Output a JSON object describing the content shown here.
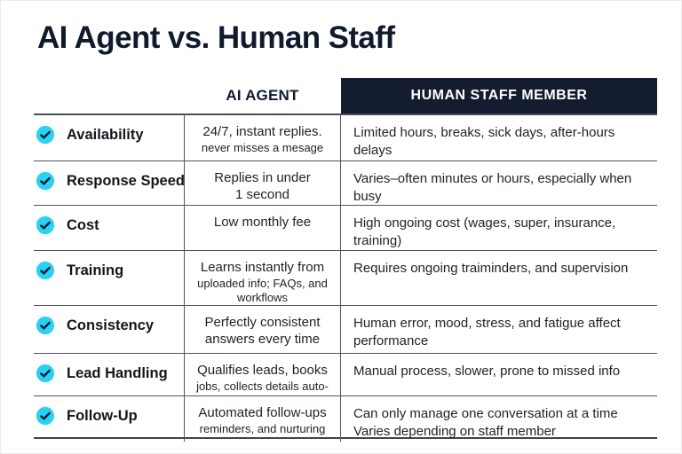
{
  "title": "AI Agent vs. Human Staff",
  "colors": {
    "navy": "#141c30",
    "cyan": "#29d2f2",
    "grid_line": "#4e555e",
    "text": "#1d2126"
  },
  "icons": {
    "check": "✓"
  },
  "table": {
    "headers": {
      "feature": "",
      "ai": "AI AGENT",
      "human": "HUMAN STAFF MEMBER"
    },
    "rows": [
      {
        "feature": "Availability",
        "ai_lines": [
          {
            "text": "24/7, instant replies.",
            "small": false
          },
          {
            "text": "never misses a mesage",
            "small": true
          }
        ],
        "human": "Limited hours, breaks, sick days, after-hours delays"
      },
      {
        "feature": "Response Speed",
        "ai_lines": [
          {
            "text": "Replies in under",
            "small": false
          },
          {
            "text": "1 second",
            "small": false
          }
        ],
        "human": "Varies–often minutes or hours, especially when busy"
      },
      {
        "feature": "Cost",
        "ai_lines": [
          {
            "text": "Low monthly fee",
            "small": false
          }
        ],
        "human": "High ongoing cost (wages, super, insurance, training)"
      },
      {
        "feature": "Training",
        "ai_lines": [
          {
            "text": "Learns instantly from",
            "small": false
          },
          {
            "text": "uploaded info; FAQs, and",
            "small": true
          },
          {
            "text": "workflows",
            "small": true
          }
        ],
        "human": "Requires ongoing traiminders, and supervision"
      },
      {
        "feature": "Consistency",
        "ai_lines": [
          {
            "text": "Perfectly consistent",
            "small": false
          },
          {
            "text": "answers every time",
            "small": false
          }
        ],
        "human": "Human error, mood, stress, and fatigue affect performance"
      },
      {
        "feature": "Lead Handling",
        "ai_lines": [
          {
            "text": "Qualifies leads, books",
            "small": false
          },
          {
            "text": "jobs, collects details auto-",
            "small": true
          }
        ],
        "human": "Manual process, slower, prone to missed info"
      },
      {
        "feature": "Follow-Up",
        "ai_lines": [
          {
            "text": "Automated follow-ups",
            "small": false
          },
          {
            "text": "reminders, and nurturing",
            "small": true
          }
        ],
        "human": "Can only manage one conversation at a time\nVaries depending on staff member"
      }
    ]
  },
  "chart_data": {
    "type": "table",
    "title": "AI Agent vs. Human Staff",
    "columns": [
      "Feature",
      "AI AGENT",
      "HUMAN STAFF MEMBER"
    ],
    "rows": [
      [
        "Availability",
        "24/7, instant replies. never misses a mesage",
        "Limited hours, breaks, sick days, after-hours delays"
      ],
      [
        "Response Speed",
        "Replies in under 1 second",
        "Varies–often minutes or hours, especially when busy"
      ],
      [
        "Cost",
        "Low monthly fee",
        "High ongoing cost (wages, super, insurance, training)"
      ],
      [
        "Training",
        "Learns instantly from uploaded info; FAQs, and workflows",
        "Requires ongoing traiminders, and supervision"
      ],
      [
        "Consistency",
        "Perfectly consistent answers every time",
        "Human error, mood, stress, and fatigue affect performance"
      ],
      [
        "Lead Handling",
        "Qualifies leads, books jobs, collects details auto-",
        "Manual process, slower, prone to missed info"
      ],
      [
        "Follow-Up",
        "Automated follow-ups reminders, and nurturing",
        "Can only manage one conversation at a time Varies depending on staff member"
      ]
    ]
  }
}
